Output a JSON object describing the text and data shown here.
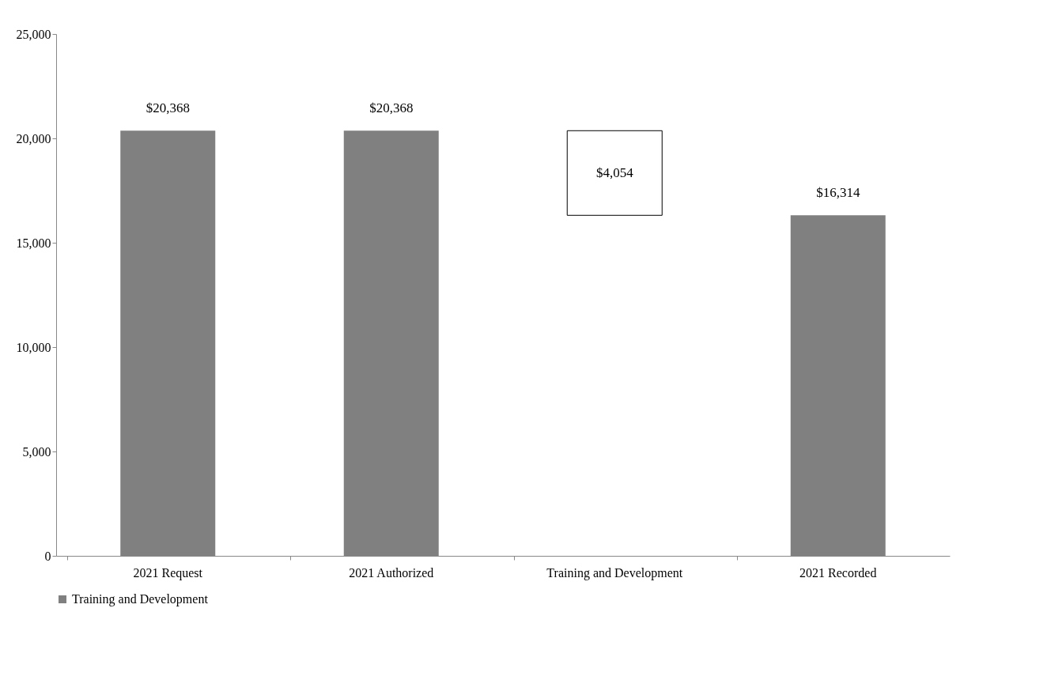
{
  "chart_data": {
    "type": "bar",
    "categories": [
      "2021 Request",
      "2021 Authorized",
      "Training and Development",
      "2021 Recorded"
    ],
    "series": [
      {
        "name": "Training and Development",
        "color": "#808080",
        "colors": [
          "#808080",
          "#808080",
          "#ffffff",
          "#808080"
        ],
        "values": [
          20368,
          20368,
          4054,
          16314
        ],
        "base": [
          0,
          0,
          16314,
          0
        ],
        "value_labels": [
          "$20,368",
          "$20,368",
          "$4,054",
          "$16,314"
        ]
      }
    ],
    "ylim": [
      0,
      25000
    ],
    "yticks": [
      0,
      {
        "value": 5000,
        "label": "5,000"
      },
      {
        "value": 10000,
        "label": "10,000"
      },
      {
        "value": 15000,
        "label": "15,000"
      },
      {
        "value": 20000,
        "label": "20,000"
      },
      {
        "value": 25000,
        "label": "25,000"
      }
    ],
    "grid": false,
    "legend": "bottom"
  }
}
